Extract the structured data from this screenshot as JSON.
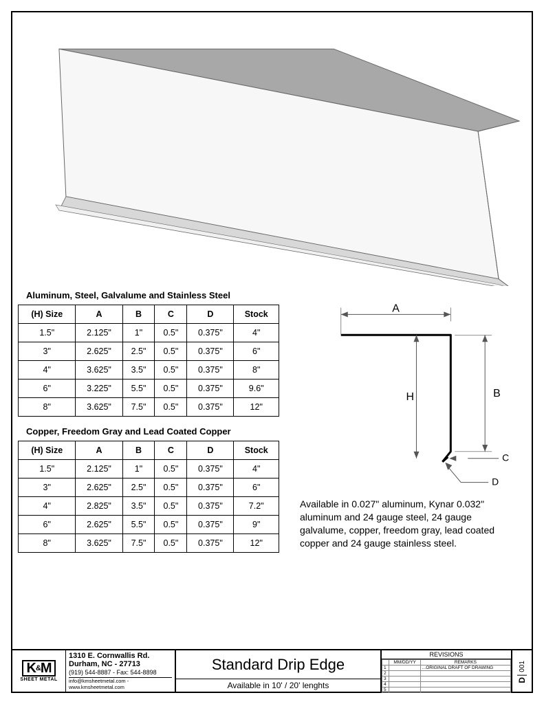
{
  "table1": {
    "title": "Aluminum, Steel, Galvalume and Stainless Steel",
    "columns": [
      "(H) Size",
      "A",
      "B",
      "C",
      "D",
      "Stock"
    ],
    "rows": [
      [
        "1.5\"",
        "2.125\"",
        "1\"",
        "0.5\"",
        "0.375\"",
        "4\""
      ],
      [
        "3\"",
        "2.625\"",
        "2.5\"",
        "0.5\"",
        "0.375\"",
        "6\""
      ],
      [
        "4\"",
        "3.625\"",
        "3.5\"",
        "0.5\"",
        "0.375\"",
        "8\""
      ],
      [
        "6\"",
        "3.225\"",
        "5.5\"",
        "0.5\"",
        "0.375\"",
        "9.6\""
      ],
      [
        "8\"",
        "3.625\"",
        "7.5\"",
        "0.5\"",
        "0.375\"",
        "12\""
      ]
    ]
  },
  "table2": {
    "title": "Copper, Freedom Gray and Lead Coated Copper",
    "columns": [
      "(H) Size",
      "A",
      "B",
      "C",
      "D",
      "Stock"
    ],
    "rows": [
      [
        "1.5\"",
        "2.125\"",
        "1\"",
        "0.5\"",
        "0.375\"",
        "4\""
      ],
      [
        "3\"",
        "2.625\"",
        "2.5\"",
        "0.5\"",
        "0.375\"",
        "6\""
      ],
      [
        "4\"",
        "2.825\"",
        "3.5\"",
        "0.5\"",
        "0.375\"",
        "7.2\""
      ],
      [
        "6\"",
        "2.625\"",
        "5.5\"",
        "0.5\"",
        "0.375\"",
        "9\""
      ],
      [
        "8\"",
        "3.625\"",
        "7.5\"",
        "0.5\"",
        "0.375\"",
        "12\""
      ]
    ]
  },
  "profile": {
    "labels": {
      "A": "A",
      "B": "B",
      "C": "C",
      "D": "D",
      "H": "H"
    },
    "colors": {
      "line": "#000000",
      "dim": "#555555"
    }
  },
  "material_note": "Available in 0.027\" aluminum, Kynar 0.032\" aluminum and 24 gauge steel, 24 gauge galvalume, copper, freedom gray, lead coated copper and 24 gauge stainless steel.",
  "render": {
    "colors": {
      "top_fill": "#a8a8a8",
      "face_fill": "#f7f7f7",
      "edge": "#666666",
      "shadow": "#d8d8d8"
    }
  },
  "titleblock": {
    "logo": {
      "brand": "K&M",
      "subtitle": "SHEET METAL"
    },
    "address": {
      "line1": "1310 E. Cornwallis Rd.",
      "line2": "Durham, NC - 27713",
      "line3": "(919) 544-8887 - Fax: 544-8898",
      "contact": "info@kmsheetmetal.com - www.kmsheetmetal.com"
    },
    "title": "Standard Drip Edge",
    "subtitle": "Available in 10' / 20' lenghts",
    "revisions": {
      "header": "REVISIONS",
      "cols": [
        "",
        "MM/DD/YY",
        "REMARKS"
      ],
      "rows": [
        [
          "1",
          "",
          "...ORIGINAL DRAFT OF DRAWING"
        ],
        [
          "2",
          "",
          ""
        ],
        [
          "3",
          "",
          ""
        ],
        [
          "4",
          "",
          ""
        ],
        [
          "5",
          "",
          ""
        ]
      ]
    },
    "sheet": {
      "letter": "D",
      "number": "001"
    }
  }
}
